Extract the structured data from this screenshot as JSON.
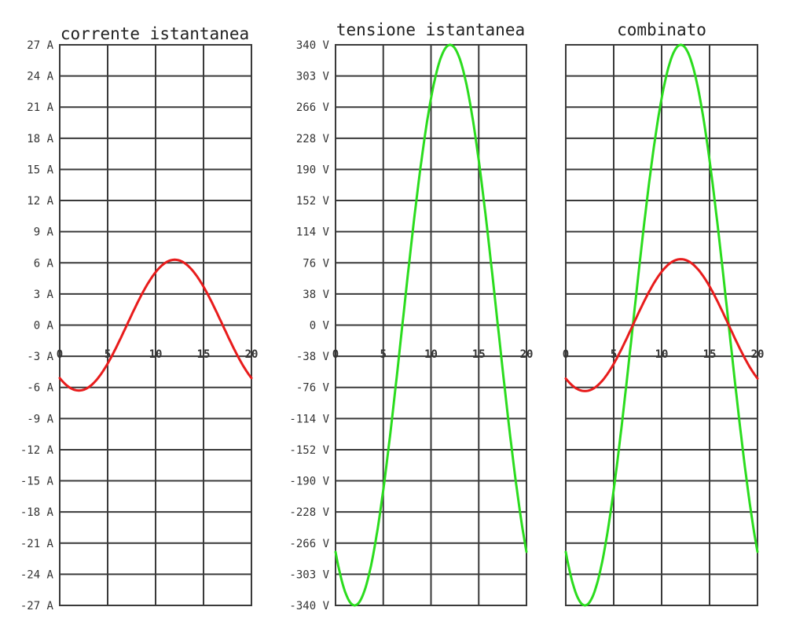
{
  "chart_data": [
    {
      "type": "line",
      "title": "corrente istantanea",
      "x": [
        0,
        20
      ],
      "x_ticks": [
        "0",
        "5",
        "10",
        "15",
        "20"
      ],
      "y_ticks": [
        "27 A",
        "24 A",
        "21 A",
        "18 A",
        "15 A",
        "12 A",
        "9 A",
        "6 A",
        "3 A",
        "0 A",
        "-3 A",
        "-6 A",
        "-9 A",
        "-12 A",
        "-15 A",
        "-18 A",
        "-21 A",
        "-24 A",
        "-27 A"
      ],
      "ylim": [
        -27,
        27
      ],
      "grid": true,
      "series": [
        {
          "color": "#e81c1c",
          "waveform": "sine",
          "amplitude": 6.3,
          "peak_x": 12,
          "period": 20,
          "x": [
            0,
            20
          ]
        }
      ]
    },
    {
      "type": "line",
      "title": "tensione istantanea",
      "x": [
        0,
        20
      ],
      "x_ticks": [
        "0",
        "5",
        "10",
        "15",
        "20"
      ],
      "y_ticks": [
        "340 V",
        "303 V",
        "266 V",
        "228 V",
        "190 V",
        "152 V",
        "114 V",
        "76 V",
        "38 V",
        "0 V",
        "-38 V",
        "-76 V",
        "-114 V",
        "-152 V",
        "-190 V",
        "-228 V",
        "-266 V",
        "-303 V",
        "-340 V"
      ],
      "ylim": [
        -340,
        340
      ],
      "grid": true,
      "series": [
        {
          "color": "#2bdc1e",
          "waveform": "sine",
          "amplitude": 340,
          "peak_x": 12,
          "period": 20,
          "x": [
            0,
            20
          ]
        }
      ]
    },
    {
      "type": "line",
      "title": "combinato",
      "x": [
        0,
        20
      ],
      "x_ticks": [
        "0",
        "5",
        "10",
        "15",
        "20"
      ],
      "y_ticks": [],
      "ylim": [
        -340,
        340
      ],
      "grid": true,
      "series": [
        {
          "color": "#2bdc1e",
          "waveform": "sine",
          "amplitude": 340,
          "peak_x": 12,
          "period": 20,
          "x": [
            0,
            20
          ]
        },
        {
          "color": "#e81c1c",
          "waveform": "sine",
          "amplitude": 80,
          "peak_x": 12,
          "period": 20,
          "x": [
            0,
            20
          ]
        }
      ]
    }
  ]
}
